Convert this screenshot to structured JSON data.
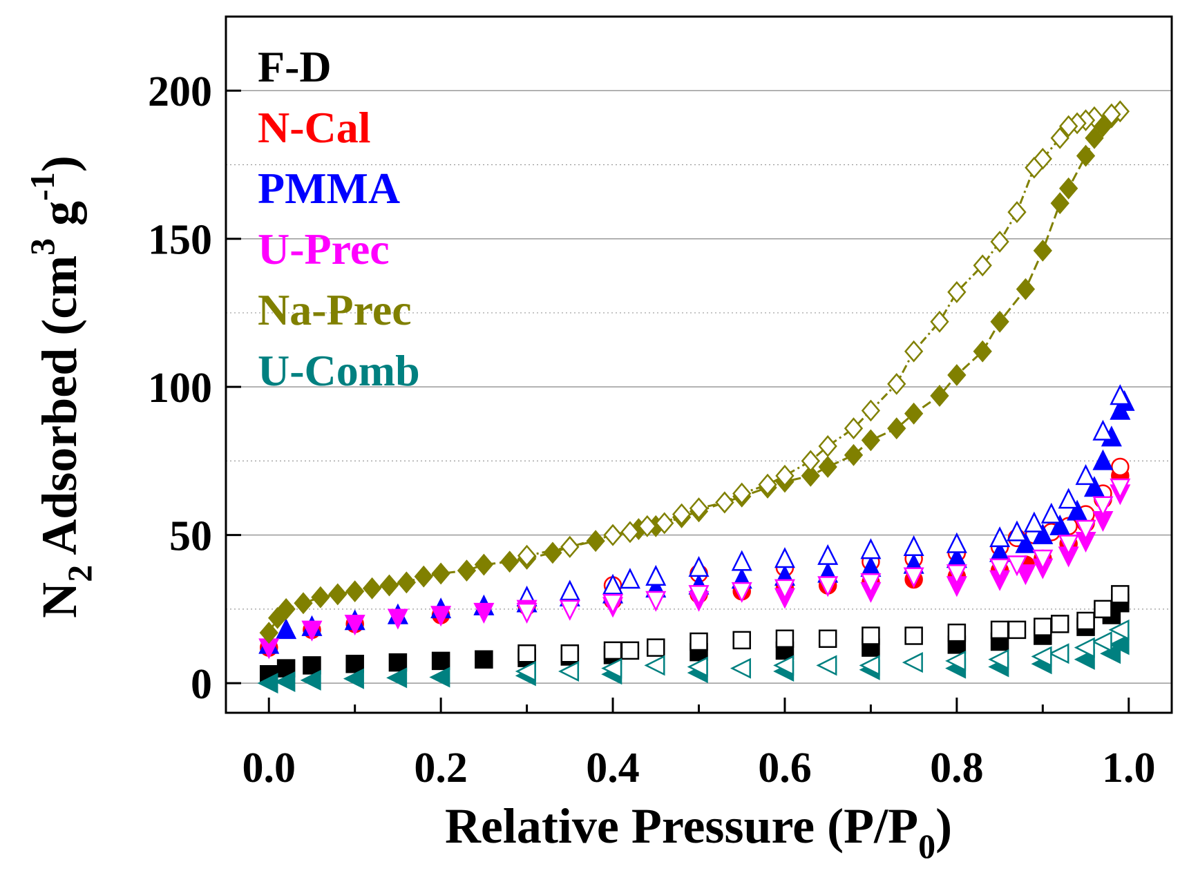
{
  "chart_data": {
    "type": "scatter",
    "title": "",
    "xlabel": "Relative Pressure (P/P0)",
    "xlabel_main": "Relative Pressure (P/P",
    "xlabel_sub": "0",
    "xlabel_close": ")",
    "ylabel_n": "N",
    "ylabel_sub": "2",
    "ylabel_main": " Adsorbed (cm",
    "ylabel_sup3": "3",
    "ylabel_g": " g",
    "ylabel_sup": "-1",
    "ylabel_close": ")",
    "xlim": [
      -0.05,
      1.05
    ],
    "ylim": [
      -10,
      225
    ],
    "xticks": [
      "0.0",
      "0.2",
      "0.4",
      "0.6",
      "0.8",
      "1.0"
    ],
    "xtick_values": [
      0,
      0.2,
      0.4,
      0.6,
      0.8,
      1.0
    ],
    "yticks": [
      "0",
      "50",
      "100",
      "150",
      "200"
    ],
    "ytick_values": [
      0,
      50,
      100,
      150,
      200
    ],
    "grid": "horizontal",
    "legend_placement": "top-left",
    "series": [
      {
        "name": "F-D",
        "color": "#000000",
        "marker": "square",
        "adsorption": [
          [
            0,
            3
          ],
          [
            0.02,
            5
          ],
          [
            0.05,
            6
          ],
          [
            0.1,
            6.5
          ],
          [
            0.15,
            7
          ],
          [
            0.2,
            7.5
          ],
          [
            0.25,
            8
          ],
          [
            0.3,
            8.5
          ],
          [
            0.35,
            9
          ],
          [
            0.4,
            9.5
          ],
          [
            0.5,
            10.5
          ],
          [
            0.6,
            11
          ],
          [
            0.7,
            12
          ],
          [
            0.8,
            13
          ],
          [
            0.85,
            14
          ],
          [
            0.9,
            16
          ],
          [
            0.95,
            19
          ],
          [
            0.98,
            23
          ],
          [
            0.99,
            27
          ]
        ],
        "desorption": [
          [
            0.99,
            30
          ],
          [
            0.97,
            25
          ],
          [
            0.95,
            21
          ],
          [
            0.92,
            20
          ],
          [
            0.9,
            19
          ],
          [
            0.87,
            18
          ],
          [
            0.85,
            18
          ],
          [
            0.8,
            17
          ],
          [
            0.75,
            16
          ],
          [
            0.7,
            16
          ],
          [
            0.65,
            15
          ],
          [
            0.6,
            15
          ],
          [
            0.55,
            14.5
          ],
          [
            0.5,
            14
          ],
          [
            0.45,
            12
          ],
          [
            0.42,
            11
          ],
          [
            0.4,
            11
          ],
          [
            0.35,
            10
          ],
          [
            0.3,
            10
          ]
        ]
      },
      {
        "name": "N-Cal",
        "color": "#ff0000",
        "marker": "circle",
        "adsorption": [
          [
            0,
            12
          ],
          [
            0.05,
            18
          ],
          [
            0.1,
            20
          ],
          [
            0.2,
            23
          ],
          [
            0.3,
            26
          ],
          [
            0.4,
            28
          ],
          [
            0.5,
            30
          ],
          [
            0.55,
            31
          ],
          [
            0.6,
            32
          ],
          [
            0.65,
            33
          ],
          [
            0.7,
            34
          ],
          [
            0.75,
            35
          ],
          [
            0.8,
            36
          ],
          [
            0.85,
            38
          ],
          [
            0.88,
            40
          ],
          [
            0.9,
            42
          ],
          [
            0.93,
            47
          ],
          [
            0.95,
            54
          ],
          [
            0.97,
            62
          ],
          [
            0.99,
            70
          ]
        ],
        "desorption": [
          [
            0.99,
            73
          ],
          [
            0.97,
            64
          ],
          [
            0.95,
            57
          ],
          [
            0.93,
            53
          ],
          [
            0.91,
            51
          ],
          [
            0.89,
            50
          ],
          [
            0.87,
            49
          ],
          [
            0.85,
            46
          ],
          [
            0.8,
            44
          ],
          [
            0.75,
            42
          ],
          [
            0.7,
            41
          ],
          [
            0.6,
            39
          ],
          [
            0.5,
            37
          ],
          [
            0.4,
            33
          ]
        ]
      },
      {
        "name": "PMMA",
        "color": "#0000ff",
        "marker": "triangle-up",
        "adsorption": [
          [
            0,
            13
          ],
          [
            0.02,
            18
          ],
          [
            0.05,
            19
          ],
          [
            0.1,
            21
          ],
          [
            0.15,
            23
          ],
          [
            0.2,
            25
          ],
          [
            0.25,
            26
          ],
          [
            0.3,
            27
          ],
          [
            0.35,
            29
          ],
          [
            0.4,
            30
          ],
          [
            0.45,
            32
          ],
          [
            0.5,
            33
          ],
          [
            0.55,
            35
          ],
          [
            0.6,
            36
          ],
          [
            0.65,
            37
          ],
          [
            0.7,
            39
          ],
          [
            0.75,
            40
          ],
          [
            0.8,
            42
          ],
          [
            0.85,
            44
          ],
          [
            0.88,
            47
          ],
          [
            0.9,
            50
          ],
          [
            0.92,
            53
          ],
          [
            0.94,
            58
          ],
          [
            0.96,
            66
          ],
          [
            0.97,
            75
          ],
          [
            0.98,
            83
          ],
          [
            0.99,
            92
          ],
          [
            0.995,
            95
          ]
        ],
        "desorption": [
          [
            0.99,
            97
          ],
          [
            0.97,
            85
          ],
          [
            0.95,
            70
          ],
          [
            0.93,
            62
          ],
          [
            0.91,
            57
          ],
          [
            0.89,
            54
          ],
          [
            0.87,
            51
          ],
          [
            0.85,
            49
          ],
          [
            0.8,
            47
          ],
          [
            0.75,
            46
          ],
          [
            0.7,
            45
          ],
          [
            0.65,
            43
          ],
          [
            0.6,
            42
          ],
          [
            0.55,
            41
          ],
          [
            0.5,
            39
          ],
          [
            0.45,
            36
          ],
          [
            0.42,
            35
          ],
          [
            0.4,
            33
          ],
          [
            0.35,
            31
          ],
          [
            0.3,
            29
          ]
        ]
      },
      {
        "name": "U-Prec",
        "color": "#ff00ff",
        "marker": "triangle-down",
        "adsorption": [
          [
            0,
            12
          ],
          [
            0.05,
            18
          ],
          [
            0.1,
            20
          ],
          [
            0.15,
            22
          ],
          [
            0.2,
            23
          ],
          [
            0.25,
            24
          ],
          [
            0.3,
            25
          ],
          [
            0.35,
            25
          ],
          [
            0.4,
            26
          ],
          [
            0.5,
            28
          ],
          [
            0.6,
            29
          ],
          [
            0.7,
            31
          ],
          [
            0.8,
            33
          ],
          [
            0.85,
            35
          ],
          [
            0.88,
            37
          ],
          [
            0.9,
            39
          ],
          [
            0.93,
            43
          ],
          [
            0.95,
            48
          ],
          [
            0.97,
            55
          ],
          [
            0.99,
            64
          ]
        ],
        "desorption": [
          [
            0.99,
            66
          ],
          [
            0.97,
            60
          ],
          [
            0.95,
            52
          ],
          [
            0.93,
            47
          ],
          [
            0.9,
            42
          ],
          [
            0.87,
            40
          ],
          [
            0.85,
            39
          ],
          [
            0.8,
            37
          ],
          [
            0.75,
            36
          ],
          [
            0.7,
            34
          ],
          [
            0.65,
            33
          ],
          [
            0.6,
            32
          ],
          [
            0.55,
            31
          ],
          [
            0.5,
            30
          ],
          [
            0.45,
            28
          ],
          [
            0.4,
            27
          ],
          [
            0.35,
            25
          ],
          [
            0.3,
            24
          ]
        ]
      },
      {
        "name": "Na-Prec",
        "color": "#808000",
        "marker": "diamond",
        "adsorption": [
          [
            0,
            17
          ],
          [
            0.01,
            22
          ],
          [
            0.02,
            25
          ],
          [
            0.04,
            27
          ],
          [
            0.06,
            29
          ],
          [
            0.08,
            30
          ],
          [
            0.1,
            31
          ],
          [
            0.12,
            32
          ],
          [
            0.14,
            33
          ],
          [
            0.16,
            34
          ],
          [
            0.18,
            36
          ],
          [
            0.2,
            37
          ],
          [
            0.23,
            38
          ],
          [
            0.25,
            40
          ],
          [
            0.28,
            41
          ],
          [
            0.3,
            42
          ],
          [
            0.33,
            44
          ],
          [
            0.35,
            46
          ],
          [
            0.38,
            48
          ],
          [
            0.4,
            50
          ],
          [
            0.43,
            52
          ],
          [
            0.45,
            53
          ],
          [
            0.48,
            56
          ],
          [
            0.5,
            58
          ],
          [
            0.53,
            61
          ],
          [
            0.55,
            63
          ],
          [
            0.58,
            66
          ],
          [
            0.6,
            68
          ],
          [
            0.63,
            70
          ],
          [
            0.65,
            73
          ],
          [
            0.68,
            77
          ],
          [
            0.7,
            82
          ],
          [
            0.73,
            86
          ],
          [
            0.75,
            91
          ],
          [
            0.78,
            97
          ],
          [
            0.8,
            104
          ],
          [
            0.83,
            112
          ],
          [
            0.85,
            122
          ],
          [
            0.88,
            133
          ],
          [
            0.9,
            146
          ],
          [
            0.92,
            162
          ],
          [
            0.93,
            167
          ],
          [
            0.95,
            178
          ],
          [
            0.96,
            184
          ],
          [
            0.97,
            188
          ],
          [
            0.98,
            191
          ],
          [
            0.99,
            193
          ]
        ],
        "desorption": [
          [
            0.99,
            193
          ],
          [
            0.98,
            192
          ],
          [
            0.96,
            191
          ],
          [
            0.95,
            190
          ],
          [
            0.94,
            189
          ],
          [
            0.93,
            188
          ],
          [
            0.92,
            184
          ],
          [
            0.9,
            177
          ],
          [
            0.89,
            174
          ],
          [
            0.87,
            159
          ],
          [
            0.85,
            149
          ],
          [
            0.83,
            141
          ],
          [
            0.8,
            132
          ],
          [
            0.78,
            122
          ],
          [
            0.75,
            112
          ],
          [
            0.73,
            101
          ],
          [
            0.7,
            92
          ],
          [
            0.68,
            86
          ],
          [
            0.65,
            80
          ],
          [
            0.63,
            75
          ],
          [
            0.6,
            70
          ],
          [
            0.58,
            67
          ],
          [
            0.55,
            64
          ],
          [
            0.53,
            61
          ],
          [
            0.5,
            59
          ],
          [
            0.48,
            57
          ],
          [
            0.46,
            54
          ],
          [
            0.44,
            53
          ],
          [
            0.42,
            51
          ],
          [
            0.4,
            50
          ],
          [
            0.35,
            46
          ],
          [
            0.3,
            43
          ]
        ]
      },
      {
        "name": "U-Comb",
        "color": "#008080",
        "marker": "triangle-left",
        "adsorption": [
          [
            0,
            0
          ],
          [
            0.02,
            0.5
          ],
          [
            0.05,
            1
          ],
          [
            0.1,
            1.5
          ],
          [
            0.15,
            1.8
          ],
          [
            0.2,
            2
          ],
          [
            0.3,
            2.5
          ],
          [
            0.4,
            3
          ],
          [
            0.5,
            3.5
          ],
          [
            0.6,
            4
          ],
          [
            0.7,
            4.5
          ],
          [
            0.8,
            5
          ],
          [
            0.85,
            5.5
          ],
          [
            0.9,
            6.5
          ],
          [
            0.95,
            8
          ],
          [
            0.98,
            10
          ],
          [
            0.99,
            13
          ]
        ],
        "desorption": [
          [
            0.99,
            18
          ],
          [
            0.97,
            14
          ],
          [
            0.95,
            12
          ],
          [
            0.92,
            10
          ],
          [
            0.9,
            9
          ],
          [
            0.85,
            8
          ],
          [
            0.8,
            7.5
          ],
          [
            0.75,
            7
          ],
          [
            0.7,
            6
          ],
          [
            0.65,
            6
          ],
          [
            0.6,
            6
          ],
          [
            0.55,
            5
          ],
          [
            0.5,
            5.5
          ],
          [
            0.45,
            6
          ],
          [
            0.4,
            5
          ],
          [
            0.35,
            4
          ],
          [
            0.3,
            4
          ]
        ]
      }
    ]
  }
}
